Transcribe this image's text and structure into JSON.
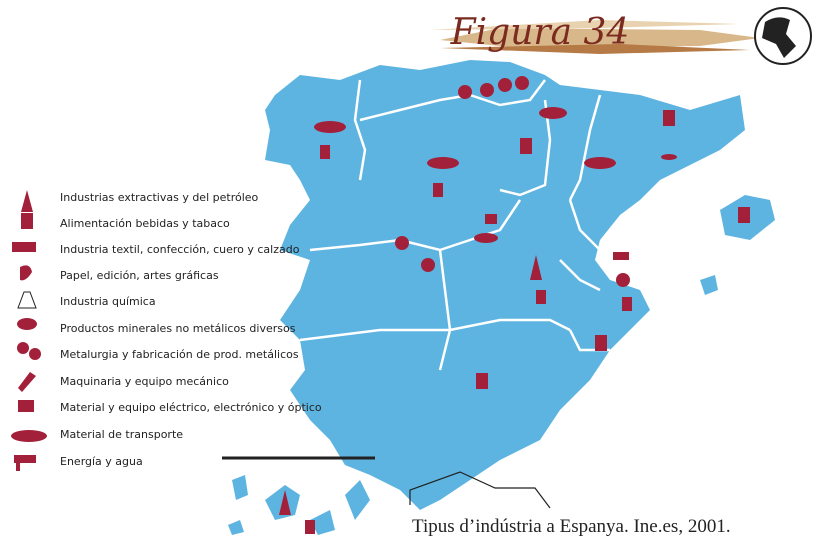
{
  "header": {
    "title": "Figura 34"
  },
  "legend": {
    "items": [
      "Industrias extractivas y del petróleo",
      "Alimentación bebidas y tabaco",
      "Industria textil, confección, cuero y calzado",
      "Papel, edición, artes gráficas",
      "Industria química",
      "Productos minerales no metálicos diversos",
      "Metalurgia y fabricación de prod. metálicos",
      "Maquinaria y equipo mecánico",
      "Material y equipo eléctrico, electrónico y óptico",
      "Material de transporte",
      "Energía y agua"
    ]
  },
  "caption": "Tipus d’indústria a Espanya. Ine.es, 2001."
}
